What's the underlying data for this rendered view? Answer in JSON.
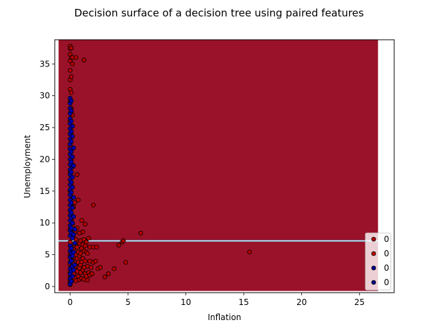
{
  "chart_data": {
    "type": "scatter",
    "title": "Decision surface of a decision tree using paired features",
    "xlabel": "Inflation",
    "ylabel": "Unemployment",
    "xlim": [
      -1.33,
      28.0
    ],
    "ylim": [
      -0.97,
      38.8
    ],
    "xticks": [
      0,
      5,
      10,
      15,
      20,
      25
    ],
    "yticks": [
      0,
      5,
      10,
      15,
      20,
      25,
      30,
      35
    ],
    "surface": {
      "x_range": [
        -1.0,
        26.6
      ],
      "y_range": [
        -0.7,
        38.8
      ],
      "split_band_y": [
        7.05,
        7.3
      ],
      "color": "#9a1229",
      "band_color": "#ecebf3"
    },
    "legend": {
      "placement": "lower-right",
      "entries": [
        {
          "label": "0",
          "color": "#b30000"
        },
        {
          "label": "0",
          "color": "#b30000"
        },
        {
          "label": "0",
          "color": "#00008b"
        },
        {
          "label": "0",
          "color": "#00008b"
        }
      ]
    },
    "series": [
      {
        "name": "red-points",
        "color": "#b30000",
        "points": [
          [
            0.0,
            0.3
          ],
          [
            0.0,
            0.6
          ],
          [
            0.0,
            1.0
          ],
          [
            0.0,
            1.5
          ],
          [
            0.0,
            2.2
          ],
          [
            0.0,
            3.4
          ],
          [
            0.0,
            5.0
          ],
          [
            0.0,
            7.0
          ],
          [
            0.0,
            9.0
          ],
          [
            0.0,
            12.0
          ],
          [
            0.0,
            15.0
          ],
          [
            0.0,
            18.0
          ],
          [
            0.0,
            22.0
          ],
          [
            0.0,
            26.0
          ],
          [
            0.0,
            29.0
          ],
          [
            0.0,
            31.0
          ],
          [
            0.0,
            32.5
          ],
          [
            0.0,
            34.0
          ],
          [
            0.0,
            35.5
          ],
          [
            0.0,
            36.5
          ],
          [
            0.0,
            37.4
          ],
          [
            0.0,
            37.8
          ],
          [
            0.1,
            0.8
          ],
          [
            0.1,
            1.8
          ],
          [
            0.1,
            3.0
          ],
          [
            0.1,
            4.2
          ],
          [
            0.1,
            6.0
          ],
          [
            0.1,
            8.0
          ],
          [
            0.1,
            10.5
          ],
          [
            0.1,
            13.0
          ],
          [
            0.1,
            16.0
          ],
          [
            0.1,
            20.0
          ],
          [
            0.1,
            24.0
          ],
          [
            0.1,
            28.0
          ],
          [
            0.1,
            30.5
          ],
          [
            0.1,
            33.0
          ],
          [
            0.1,
            36.0
          ],
          [
            0.1,
            37.5
          ],
          [
            0.2,
            1.2
          ],
          [
            0.2,
            2.6
          ],
          [
            0.2,
            4.0
          ],
          [
            0.2,
            5.5
          ],
          [
            0.2,
            9.5
          ],
          [
            0.2,
            11.0
          ],
          [
            0.2,
            14.0
          ],
          [
            0.2,
            27.0
          ],
          [
            0.2,
            35.0
          ],
          [
            0.2,
            36.0
          ],
          [
            0.3,
            2.0
          ],
          [
            0.3,
            3.6
          ],
          [
            0.3,
            5.8
          ],
          [
            0.3,
            7.6
          ],
          [
            0.3,
            12.5
          ],
          [
            0.4,
            1.4
          ],
          [
            0.4,
            2.8
          ],
          [
            0.4,
            4.6
          ],
          [
            0.4,
            6.6
          ],
          [
            0.4,
            8.6
          ],
          [
            0.4,
            13.2
          ],
          [
            0.5,
            0.9
          ],
          [
            0.5,
            3.2
          ],
          [
            0.5,
            5.0
          ],
          [
            0.5,
            7.4
          ],
          [
            0.5,
            36.0
          ],
          [
            0.6,
            2.4
          ],
          [
            0.6,
            4.4
          ],
          [
            0.6,
            6.2
          ],
          [
            0.6,
            9.2
          ],
          [
            0.6,
            17.6
          ],
          [
            0.7,
            1.6
          ],
          [
            0.7,
            3.8
          ],
          [
            0.7,
            5.4
          ],
          [
            0.7,
            7.0
          ],
          [
            0.7,
            13.6
          ],
          [
            0.8,
            1.1
          ],
          [
            0.8,
            2.9
          ],
          [
            0.8,
            4.8
          ],
          [
            0.8,
            6.8
          ],
          [
            0.8,
            8.4
          ],
          [
            0.9,
            2.2
          ],
          [
            0.9,
            3.4
          ],
          [
            0.9,
            5.2
          ],
          [
            0.9,
            7.2
          ],
          [
            1.0,
            1.3
          ],
          [
            1.0,
            3.9
          ],
          [
            1.0,
            6.0
          ],
          [
            1.0,
            10.4
          ],
          [
            1.1,
            2.6
          ],
          [
            1.1,
            4.4
          ],
          [
            1.1,
            6.6
          ],
          [
            1.1,
            8.6
          ],
          [
            1.2,
            1.1
          ],
          [
            1.2,
            3.0
          ],
          [
            1.2,
            5.6
          ],
          [
            1.2,
            7.4
          ],
          [
            1.2,
            35.6
          ],
          [
            1.3,
            2.0
          ],
          [
            1.3,
            4.0
          ],
          [
            1.3,
            6.4
          ],
          [
            1.3,
            9.8
          ],
          [
            1.4,
            1.6
          ],
          [
            1.4,
            5.4
          ],
          [
            1.4,
            7.0
          ],
          [
            1.5,
            1.0
          ],
          [
            1.5,
            3.2
          ],
          [
            1.5,
            5.2
          ],
          [
            1.6,
            2.2
          ],
          [
            1.6,
            7.6
          ],
          [
            1.7,
            1.8
          ],
          [
            1.7,
            4.0
          ],
          [
            1.7,
            6.2
          ],
          [
            1.8,
            3.0
          ],
          [
            1.9,
            2.0
          ],
          [
            2.0,
            3.8
          ],
          [
            2.0,
            6.2
          ],
          [
            2.0,
            12.8
          ],
          [
            2.2,
            4.0
          ],
          [
            2.3,
            6.2
          ],
          [
            2.4,
            2.8
          ],
          [
            2.6,
            3.0
          ],
          [
            3.0,
            1.5
          ],
          [
            3.3,
            2.0
          ],
          [
            3.8,
            2.8
          ],
          [
            4.2,
            6.5
          ],
          [
            4.5,
            7.0
          ],
          [
            4.6,
            7.2
          ],
          [
            4.8,
            3.8
          ],
          [
            6.1,
            8.4
          ],
          [
            15.5,
            5.4
          ]
        ]
      },
      {
        "name": "blue-points",
        "color": "#0000b3",
        "points": [
          [
            0.0,
            0.4
          ],
          [
            0.0,
            1.2
          ],
          [
            0.0,
            2.0
          ],
          [
            0.0,
            2.8
          ],
          [
            0.0,
            3.8
          ],
          [
            0.0,
            4.6
          ],
          [
            0.0,
            5.6
          ],
          [
            0.0,
            6.4
          ],
          [
            0.0,
            8.0
          ],
          [
            0.0,
            8.8
          ],
          [
            0.0,
            9.6
          ],
          [
            0.0,
            10.4
          ],
          [
            0.0,
            11.2
          ],
          [
            0.0,
            12.0
          ],
          [
            0.0,
            12.8
          ],
          [
            0.0,
            13.6
          ],
          [
            0.0,
            14.4
          ],
          [
            0.0,
            15.2
          ],
          [
            0.0,
            16.0
          ],
          [
            0.0,
            16.8
          ],
          [
            0.0,
            17.6
          ],
          [
            0.0,
            18.4
          ],
          [
            0.0,
            19.2
          ],
          [
            0.0,
            20.0
          ],
          [
            0.0,
            20.8
          ],
          [
            0.0,
            21.6
          ],
          [
            0.0,
            22.4
          ],
          [
            0.0,
            23.2
          ],
          [
            0.0,
            24.0
          ],
          [
            0.0,
            24.8
          ],
          [
            0.0,
            25.6
          ],
          [
            0.0,
            26.4
          ],
          [
            0.0,
            27.2
          ],
          [
            0.0,
            28.0
          ],
          [
            0.0,
            28.8
          ],
          [
            0.0,
            29.6
          ],
          [
            0.1,
            0.8
          ],
          [
            0.1,
            2.4
          ],
          [
            0.1,
            4.0
          ],
          [
            0.1,
            5.2
          ],
          [
            0.1,
            6.0
          ],
          [
            0.1,
            8.4
          ],
          [
            0.1,
            9.2
          ],
          [
            0.1,
            10.8
          ],
          [
            0.1,
            11.6
          ],
          [
            0.1,
            13.2
          ],
          [
            0.1,
            14.8
          ],
          [
            0.1,
            16.4
          ],
          [
            0.1,
            18.0
          ],
          [
            0.1,
            19.6
          ],
          [
            0.1,
            21.2
          ],
          [
            0.1,
            22.8
          ],
          [
            0.1,
            24.4
          ],
          [
            0.1,
            26.0
          ],
          [
            0.1,
            27.6
          ],
          [
            0.1,
            29.2
          ],
          [
            0.2,
            1.6
          ],
          [
            0.2,
            3.2
          ],
          [
            0.2,
            4.8
          ],
          [
            0.2,
            7.6
          ],
          [
            0.2,
            10.0
          ],
          [
            0.2,
            12.4
          ],
          [
            0.2,
            15.6
          ],
          [
            0.2,
            17.2
          ],
          [
            0.2,
            18.8
          ],
          [
            0.2,
            20.4
          ],
          [
            0.2,
            23.6
          ],
          [
            0.2,
            25.2
          ],
          [
            0.3,
            2.6
          ],
          [
            0.3,
            5.4
          ],
          [
            0.3,
            8.2
          ],
          [
            0.3,
            11.0
          ],
          [
            0.3,
            14.0
          ],
          [
            0.3,
            19.0
          ],
          [
            0.3,
            21.8
          ],
          [
            0.4,
            3.4
          ],
          [
            0.4,
            6.8
          ],
          [
            0.4,
            9.0
          ]
        ]
      }
    ]
  }
}
